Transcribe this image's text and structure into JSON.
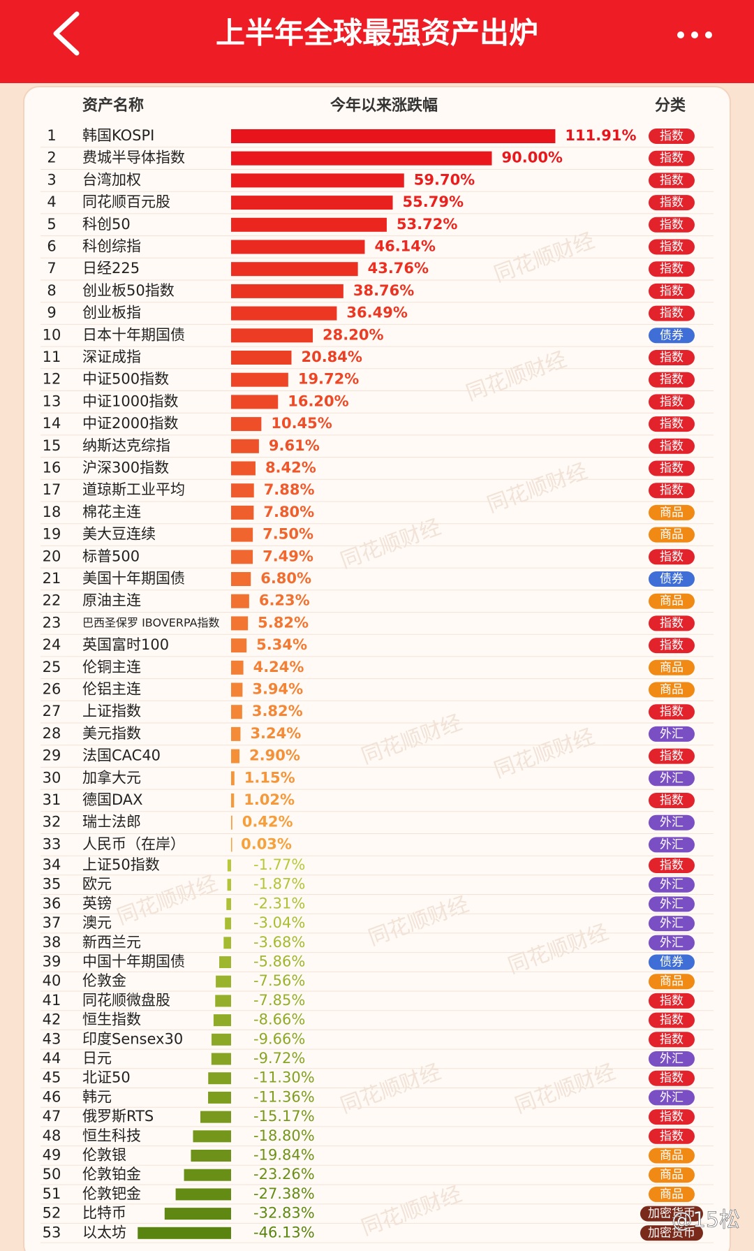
{
  "header": {
    "title": "上半年全球最强资产出炉"
  },
  "columns": [
    "资产名称",
    "今年以来涨跌幅",
    "分类"
  ],
  "watermark": "同花顺财经",
  "corner_watermark": "@15松",
  "chart_data": {
    "type": "bar",
    "orientation": "horizontal",
    "ranks": [
      1,
      2,
      3,
      4,
      5,
      6,
      7,
      8,
      9,
      10,
      11,
      12,
      13,
      14,
      15,
      16,
      17,
      18,
      19,
      20,
      21,
      22,
      23,
      24,
      25,
      26,
      27,
      28,
      29,
      30,
      31,
      32,
      33,
      34,
      35,
      36,
      37,
      38,
      39,
      40,
      41,
      42,
      43,
      44,
      45,
      46,
      47,
      48,
      49,
      50,
      51,
      52,
      53
    ],
    "categories": [
      "韩国KOSPI",
      "费城半导体指数",
      "台湾加权",
      "同花顺百元股",
      "科创50",
      "科创综指",
      "日经225",
      "创业板50指数",
      "创业板指",
      "日本十年期国债",
      "深证成指",
      "中证500指数",
      "中证1000指数",
      "中证2000指数",
      "纳斯达克综指",
      "沪深300指数",
      "道琼斯工业平均",
      "棉花主连",
      "美大豆连续",
      "标普500",
      "美国十年期国债",
      "原油主连",
      "巴西圣保罗 IBOVERPA指数",
      "英国富时100",
      "伦铜主连",
      "伦铝主连",
      "上证指数",
      "美元指数",
      "法国CAC40",
      "加拿大元",
      "德国DAX",
      "瑞士法郎",
      "人民币（在岸）",
      "上证50指数",
      "欧元",
      "英镑",
      "澳元",
      "新西兰元",
      "中国十年期国债",
      "伦敦金",
      "同花顺微盘股",
      "恒生指数",
      "印度Sensex30",
      "日元",
      "北证50",
      "韩元",
      "俄罗斯RTS",
      "恒生科技",
      "伦敦银",
      "伦敦铂金",
      "伦敦钯金",
      "比特币",
      "以太坊"
    ],
    "values": [
      111.91,
      90.0,
      59.7,
      55.79,
      53.72,
      46.14,
      43.76,
      38.76,
      36.49,
      28.2,
      20.84,
      19.72,
      16.2,
      10.45,
      9.61,
      8.42,
      7.88,
      7.8,
      7.5,
      7.49,
      6.8,
      6.23,
      5.82,
      5.34,
      4.24,
      3.94,
      3.82,
      3.24,
      2.9,
      1.15,
      1.02,
      0.42,
      0.03,
      -1.77,
      -1.87,
      -2.31,
      -3.04,
      -3.68,
      -5.86,
      -7.56,
      -7.85,
      -8.66,
      -9.66,
      -9.72,
      -11.3,
      -11.36,
      -15.17,
      -18.8,
      -19.84,
      -23.26,
      -27.38,
      -32.83,
      -46.13
    ],
    "value_labels": [
      "111.91%",
      "90.00%",
      "59.70%",
      "55.79%",
      "53.72%",
      "46.14%",
      "43.76%",
      "38.76%",
      "36.49%",
      "28.20%",
      "20.84%",
      "19.72%",
      "16.20%",
      "10.45%",
      "9.61%",
      "8.42%",
      "7.88%",
      "7.80%",
      "7.50%",
      "7.49%",
      "6.80%",
      "6.23%",
      "5.82%",
      "5.34%",
      "4.24%",
      "3.94%",
      "3.82%",
      "3.24%",
      "2.90%",
      "1.15%",
      "1.02%",
      "0.42%",
      "0.03%",
      "-1.77%",
      "-1.87%",
      "-2.31%",
      "-3.04%",
      "-3.68%",
      "-5.86%",
      "-7.56%",
      "-7.85%",
      "-8.66%",
      "-9.66%",
      "-9.72%",
      "-11.30%",
      "-11.36%",
      "-15.17%",
      "-18.80%",
      "-19.84%",
      "-23.26%",
      "-27.38%",
      "-32.83%",
      "-46.13%"
    ],
    "classes": [
      "指数",
      "指数",
      "指数",
      "指数",
      "指数",
      "指数",
      "指数",
      "指数",
      "指数",
      "债券",
      "指数",
      "指数",
      "指数",
      "指数",
      "指数",
      "指数",
      "指数",
      "商品",
      "商品",
      "指数",
      "债券",
      "商品",
      "指数",
      "指数",
      "商品",
      "商品",
      "指数",
      "外汇",
      "指数",
      "外汇",
      "指数",
      "外汇",
      "外汇",
      "指数",
      "外汇",
      "外汇",
      "外汇",
      "外汇",
      "债券",
      "商品",
      "指数",
      "指数",
      "指数",
      "外汇",
      "指数",
      "外汇",
      "指数",
      "指数",
      "商品",
      "商品",
      "商品",
      "加密货币",
      "加密货币"
    ],
    "class_colors": {
      "指数": "#e3232c",
      "债券": "#3f6fd6",
      "商品": "#f08a14",
      "外汇": "#7a4fc4",
      "加密货币": "#7a2a1a"
    }
  }
}
